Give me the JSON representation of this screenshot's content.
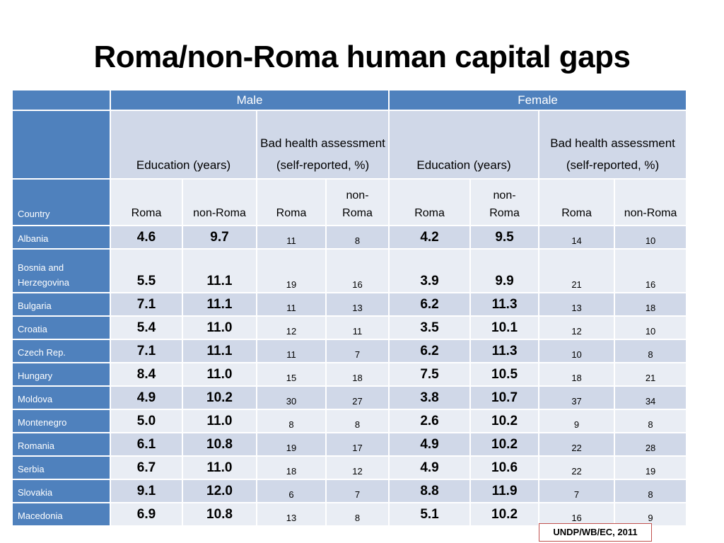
{
  "title": "Roma/non-Roma human capital gaps",
  "header": {
    "male": "Male",
    "female": "Female",
    "education": "Education (years)",
    "health": "Bad health assessment (self-reported, %)",
    "country": "Country",
    "roma": "Roma",
    "non_roma": "non-Roma"
  },
  "rows": [
    {
      "country": "Albania",
      "m_edu_r": "4.6",
      "m_edu_n": "9.7",
      "m_h_r": "11",
      "m_h_n": "8",
      "f_edu_r": "4.2",
      "f_edu_n": "9.5",
      "f_h_r": "14",
      "f_h_n": "10"
    },
    {
      "country": "Bosnia and Herzegovina",
      "m_edu_r": "5.5",
      "m_edu_n": "11.1",
      "m_h_r": "19",
      "m_h_n": "16",
      "f_edu_r": "3.9",
      "f_edu_n": "9.9",
      "f_h_r": "21",
      "f_h_n": "16"
    },
    {
      "country": "Bulgaria",
      "m_edu_r": "7.1",
      "m_edu_n": "11.1",
      "m_h_r": "11",
      "m_h_n": "13",
      "f_edu_r": "6.2",
      "f_edu_n": "11.3",
      "f_h_r": "13",
      "f_h_n": "18"
    },
    {
      "country": "Croatia",
      "m_edu_r": "5.4",
      "m_edu_n": "11.0",
      "m_h_r": "12",
      "m_h_n": "11",
      "f_edu_r": "3.5",
      "f_edu_n": "10.1",
      "f_h_r": "12",
      "f_h_n": "10"
    },
    {
      "country": "Czech Rep.",
      "m_edu_r": "7.1",
      "m_edu_n": "11.1",
      "m_h_r": "11",
      "m_h_n": "7",
      "f_edu_r": "6.2",
      "f_edu_n": "11.3",
      "f_h_r": "10",
      "f_h_n": "8"
    },
    {
      "country": "Hungary",
      "m_edu_r": "8.4",
      "m_edu_n": "11.0",
      "m_h_r": "15",
      "m_h_n": "18",
      "f_edu_r": "7.5",
      "f_edu_n": "10.5",
      "f_h_r": "18",
      "f_h_n": "21"
    },
    {
      "country": "Moldova",
      "m_edu_r": "4.9",
      "m_edu_n": "10.2",
      "m_h_r": "30",
      "m_h_n": "27",
      "f_edu_r": "3.8",
      "f_edu_n": "10.7",
      "f_h_r": "37",
      "f_h_n": "34"
    },
    {
      "country": "Montenegro",
      "m_edu_r": "5.0",
      "m_edu_n": "11.0",
      "m_h_r": "8",
      "m_h_n": "8",
      "f_edu_r": "2.6",
      "f_edu_n": "10.2",
      "f_h_r": "9",
      "f_h_n": "8"
    },
    {
      "country": "Romania",
      "m_edu_r": "6.1",
      "m_edu_n": "10.8",
      "m_h_r": "19",
      "m_h_n": "17",
      "f_edu_r": "4.9",
      "f_edu_n": "10.2",
      "f_h_r": "22",
      "f_h_n": "28"
    },
    {
      "country": "Serbia",
      "m_edu_r": "6.7",
      "m_edu_n": "11.0",
      "m_h_r": "18",
      "m_h_n": "12",
      "f_edu_r": "4.9",
      "f_edu_n": "10.6",
      "f_h_r": "22",
      "f_h_n": "19"
    },
    {
      "country": "Slovakia",
      "m_edu_r": "9.1",
      "m_edu_n": "12.0",
      "m_h_r": "6",
      "m_h_n": "7",
      "f_edu_r": "8.8",
      "f_edu_n": "11.9",
      "f_h_r": "7",
      "f_h_n": "8"
    },
    {
      "country": "Macedonia",
      "m_edu_r": "6.9",
      "m_edu_n": "10.8",
      "m_h_r": "13",
      "m_h_n": "8",
      "f_edu_r": "5.1",
      "f_edu_n": "10.2",
      "f_h_r": "16",
      "f_h_n": "9"
    }
  ],
  "source": "UNDP/WB/EC, 2011",
  "colors": {
    "header_blue": "#4f81bd",
    "band_dark": "#d0d8e8",
    "band_light": "#e9edf4",
    "source_border": "#c0504d"
  }
}
